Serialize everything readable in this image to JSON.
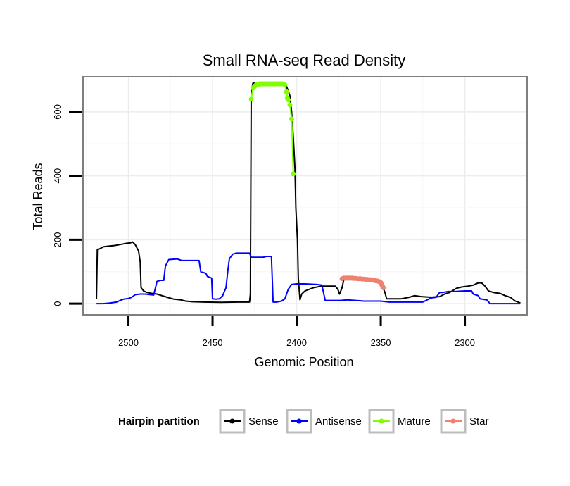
{
  "chart_data": {
    "type": "line",
    "title": "Small RNA-seq Read Density",
    "xlabel": "Genomic Position",
    "ylabel": "Total Reads",
    "x_reversed": true,
    "xlim": [
      2527,
      2263
    ],
    "ylim": [
      -35,
      710
    ],
    "xticks": [
      2500,
      2450,
      2400,
      2350,
      2300
    ],
    "yticks": [
      0,
      200,
      400,
      600
    ],
    "grid": true,
    "legend": {
      "title": "Hairpin partition",
      "position": "bottom",
      "entries": [
        {
          "label": "Sense",
          "color": "#000000"
        },
        {
          "label": "Antisense",
          "color": "#0000ff"
        },
        {
          "label": "Mature",
          "color": "#7fff00"
        },
        {
          "label": "Star",
          "color": "#f08070"
        }
      ]
    },
    "series": [
      {
        "name": "Sense",
        "color": "#000000",
        "marker": false,
        "points": [
          [
            2519,
            15
          ],
          [
            2518.5,
            170
          ],
          [
            2517,
            172
          ],
          [
            2515,
            178
          ],
          [
            2512,
            180
          ],
          [
            2508,
            182
          ],
          [
            2505,
            185
          ],
          [
            2502,
            188
          ],
          [
            2499,
            190
          ],
          [
            2497.5,
            193
          ],
          [
            2496,
            185
          ],
          [
            2494,
            165
          ],
          [
            2493,
            130
          ],
          [
            2492.5,
            50
          ],
          [
            2491,
            40
          ],
          [
            2489,
            35
          ],
          [
            2486,
            32
          ],
          [
            2483,
            30
          ],
          [
            2480,
            25
          ],
          [
            2477,
            20
          ],
          [
            2473,
            14
          ],
          [
            2469,
            12
          ],
          [
            2466,
            8
          ],
          [
            2462,
            6
          ],
          [
            2455,
            5
          ],
          [
            2445,
            4
          ],
          [
            2435,
            5
          ],
          [
            2428,
            5
          ],
          [
            2427.5,
            30
          ],
          [
            2427,
            660
          ],
          [
            2426,
            690
          ],
          [
            2420,
            690
          ],
          [
            2410,
            690
          ],
          [
            2406,
            680
          ],
          [
            2404,
            650
          ],
          [
            2403,
            600
          ],
          [
            2402,
            520
          ],
          [
            2401,
            420
          ],
          [
            2400.5,
            300
          ],
          [
            2399.5,
            200
          ],
          [
            2399,
            80
          ],
          [
            2398,
            12
          ],
          [
            2397,
            30
          ],
          [
            2395,
            40
          ],
          [
            2390,
            50
          ],
          [
            2385,
            55
          ],
          [
            2380,
            55
          ],
          [
            2377,
            55
          ],
          [
            2375.5,
            45
          ],
          [
            2374.5,
            30
          ],
          [
            2373,
            50
          ],
          [
            2372,
            75
          ],
          [
            2370,
            75
          ],
          [
            2363,
            75
          ],
          [
            2357,
            72
          ],
          [
            2352,
            68
          ],
          [
            2349,
            55
          ],
          [
            2347.5,
            35
          ],
          [
            2346.5,
            15
          ],
          [
            2343,
            15
          ],
          [
            2338,
            15
          ],
          [
            2333,
            20
          ],
          [
            2330,
            25
          ],
          [
            2326,
            22
          ],
          [
            2320,
            20
          ],
          [
            2315,
            22
          ],
          [
            2312,
            30
          ],
          [
            2309,
            35
          ],
          [
            2305,
            48
          ],
          [
            2302,
            52
          ],
          [
            2298,
            55
          ],
          [
            2295,
            58
          ],
          [
            2292,
            65
          ],
          [
            2290,
            65
          ],
          [
            2288,
            55
          ],
          [
            2286,
            40
          ],
          [
            2283,
            35
          ],
          [
            2279,
            32
          ],
          [
            2276,
            25
          ],
          [
            2273,
            20
          ],
          [
            2270,
            8
          ],
          [
            2267,
            2
          ]
        ]
      },
      {
        "name": "Antisense",
        "color": "#0000ff",
        "marker": false,
        "points": [
          [
            2519,
            0
          ],
          [
            2515,
            0
          ],
          [
            2511,
            2
          ],
          [
            2507,
            5
          ],
          [
            2505,
            10
          ],
          [
            2503,
            14
          ],
          [
            2500,
            16
          ],
          [
            2498,
            20
          ],
          [
            2496,
            28
          ],
          [
            2493,
            30
          ],
          [
            2490,
            30
          ],
          [
            2487,
            28
          ],
          [
            2485,
            27
          ],
          [
            2483,
            70
          ],
          [
            2481,
            73
          ],
          [
            2479,
            73
          ],
          [
            2478,
            118
          ],
          [
            2476,
            138
          ],
          [
            2471,
            140
          ],
          [
            2470,
            138
          ],
          [
            2468,
            135
          ],
          [
            2458,
            135
          ],
          [
            2457,
            100
          ],
          [
            2454,
            95
          ],
          [
            2453,
            85
          ],
          [
            2450.5,
            80
          ],
          [
            2450,
            15
          ],
          [
            2448,
            14
          ],
          [
            2446,
            15
          ],
          [
            2444,
            25
          ],
          [
            2442,
            50
          ],
          [
            2441,
            100
          ],
          [
            2440,
            140
          ],
          [
            2438,
            155
          ],
          [
            2436,
            158
          ],
          [
            2428,
            158
          ],
          [
            2427,
            145
          ],
          [
            2420,
            145
          ],
          [
            2418,
            148
          ],
          [
            2415,
            148
          ],
          [
            2414,
            5
          ],
          [
            2412,
            5
          ],
          [
            2409,
            8
          ],
          [
            2407,
            15
          ],
          [
            2405,
            45
          ],
          [
            2403,
            60
          ],
          [
            2400,
            62
          ],
          [
            2395,
            62
          ],
          [
            2388,
            60
          ],
          [
            2385,
            58
          ],
          [
            2383,
            10
          ],
          [
            2378,
            10
          ],
          [
            2374,
            10
          ],
          [
            2370,
            12
          ],
          [
            2365,
            10
          ],
          [
            2360,
            8
          ],
          [
            2355,
            8
          ],
          [
            2350,
            8
          ],
          [
            2345,
            5
          ],
          [
            2340,
            5
          ],
          [
            2335,
            5
          ],
          [
            2330,
            5
          ],
          [
            2325,
            5
          ],
          [
            2320,
            18
          ],
          [
            2317,
            20
          ],
          [
            2315,
            35
          ],
          [
            2313,
            35
          ],
          [
            2310,
            38
          ],
          [
            2306,
            38
          ],
          [
            2300,
            40
          ],
          [
            2296,
            40
          ],
          [
            2295,
            30
          ],
          [
            2292,
            25
          ],
          [
            2291,
            15
          ],
          [
            2287,
            12
          ],
          [
            2285,
            0
          ],
          [
            2275,
            0
          ],
          [
            2267,
            0
          ]
        ]
      },
      {
        "name": "Mature",
        "color": "#7fff00",
        "marker": true,
        "points": [
          [
            2427,
            640
          ],
          [
            2426,
            675
          ],
          [
            2425,
            680
          ],
          [
            2424,
            685
          ],
          [
            2423,
            685
          ],
          [
            2422,
            688
          ],
          [
            2421,
            688
          ],
          [
            2420,
            688
          ],
          [
            2419,
            688
          ],
          [
            2418,
            688
          ],
          [
            2417,
            688
          ],
          [
            2416,
            688
          ],
          [
            2415,
            688
          ],
          [
            2414,
            688
          ],
          [
            2413,
            688
          ],
          [
            2412,
            688
          ],
          [
            2411,
            688
          ],
          [
            2410,
            688
          ],
          [
            2409,
            688
          ],
          [
            2408,
            688
          ],
          [
            2407,
            685
          ],
          [
            2406,
            663
          ],
          [
            2405.5,
            643
          ],
          [
            2405,
            638
          ],
          [
            2404,
            622
          ],
          [
            2403,
            578
          ],
          [
            2402,
            406
          ]
        ]
      },
      {
        "name": "Star",
        "color": "#f08070",
        "marker": true,
        "points": [
          [
            2373,
            78
          ],
          [
            2372,
            80
          ],
          [
            2371,
            80
          ],
          [
            2370,
            80
          ],
          [
            2369,
            80
          ],
          [
            2368,
            80
          ],
          [
            2367,
            80
          ],
          [
            2366,
            79
          ],
          [
            2365,
            79
          ],
          [
            2364,
            78
          ],
          [
            2363,
            78
          ],
          [
            2362,
            78
          ],
          [
            2361,
            77
          ],
          [
            2360,
            77
          ],
          [
            2359,
            76
          ],
          [
            2358,
            76
          ],
          [
            2357,
            75
          ],
          [
            2356,
            75
          ],
          [
            2355,
            74
          ],
          [
            2354,
            73
          ],
          [
            2353,
            72
          ],
          [
            2352,
            71
          ],
          [
            2351,
            69
          ],
          [
            2350,
            66
          ],
          [
            2349.5,
            60
          ],
          [
            2349,
            55
          ],
          [
            2348.5,
            50
          ]
        ]
      }
    ]
  }
}
